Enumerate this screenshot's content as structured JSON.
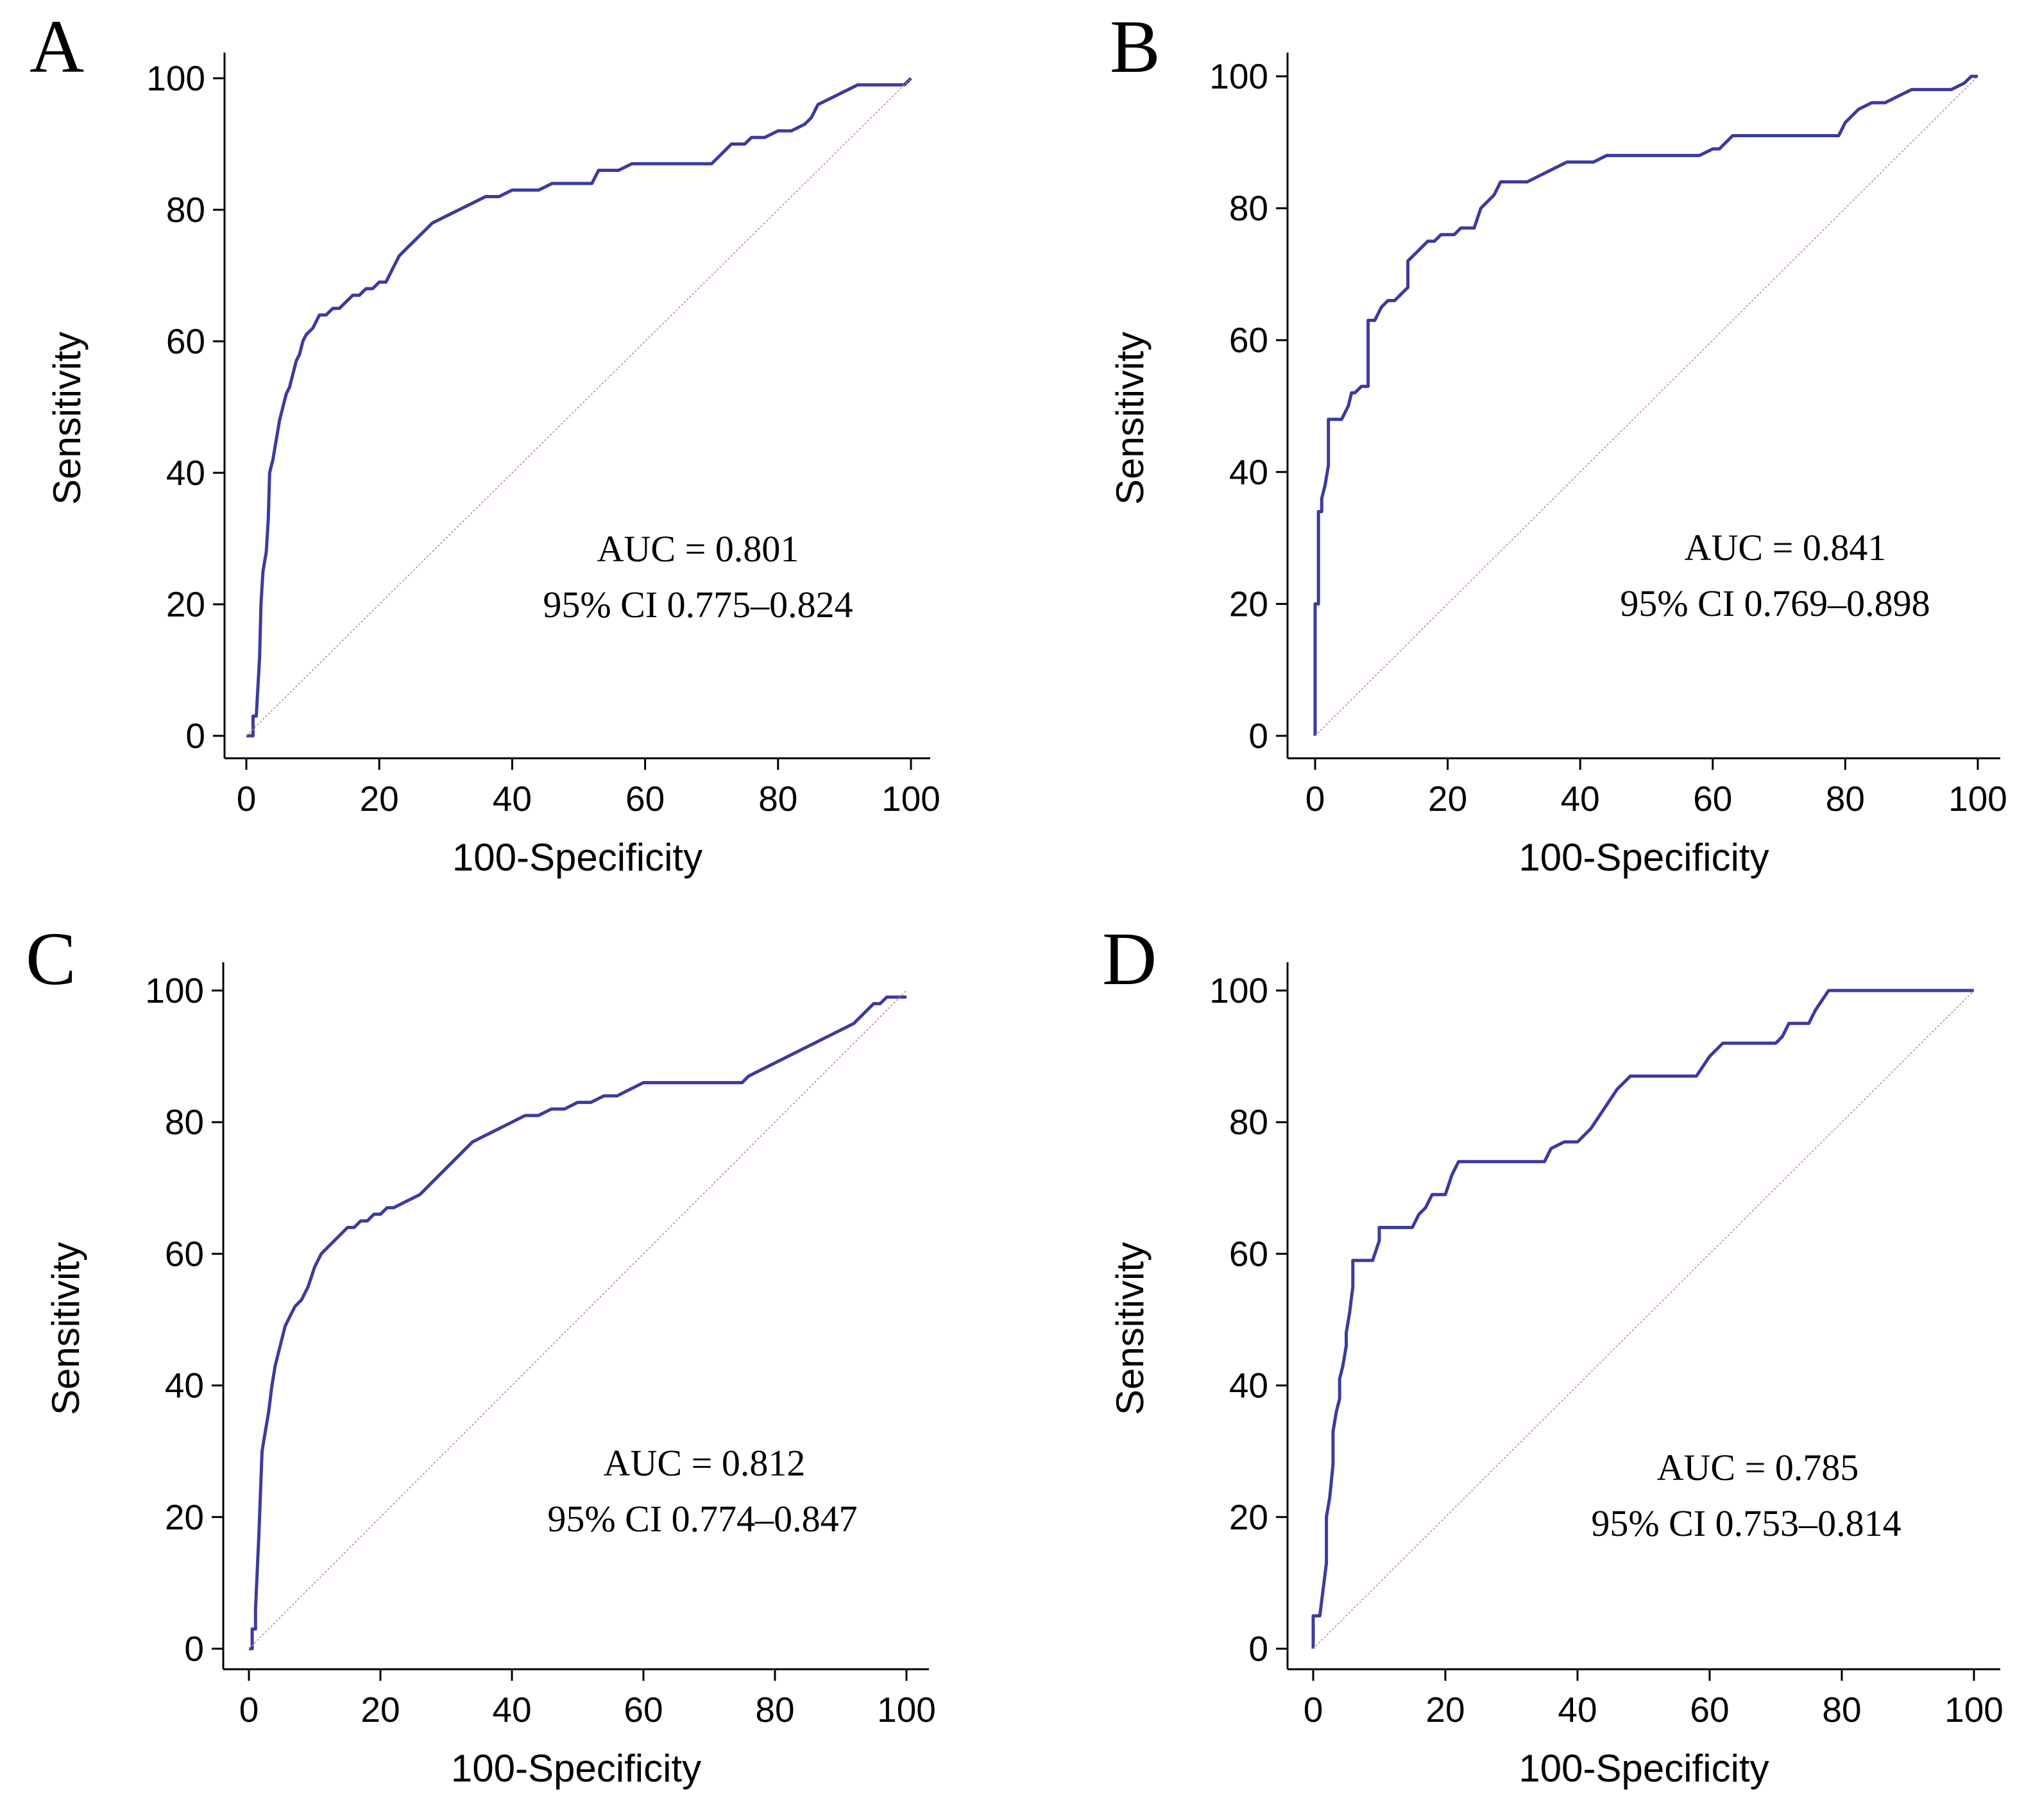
{
  "chart_data": [
    {
      "panel": "A",
      "type": "line",
      "xlabel": "100-Specificity",
      "ylabel": "Sensitivity",
      "xlim": [
        0,
        100
      ],
      "ylim": [
        0,
        100
      ],
      "xticks": [
        "0",
        "20",
        "40",
        "60",
        "80",
        "100"
      ],
      "yticks": [
        "0",
        "20",
        "40",
        "60",
        "80",
        "100"
      ],
      "annotation": [
        "AUC = 0.801",
        "95% CI 0.775–0.824"
      ],
      "series": [
        {
          "name": "ROC curve",
          "x": [
            0,
            1,
            1,
            1.5,
            2,
            2.2,
            2.5,
            3,
            3.3,
            3.5,
            4,
            4.5,
            5,
            5.5,
            6,
            6.5,
            7,
            7.5,
            8,
            8.5,
            9,
            10,
            11,
            12,
            13,
            14,
            15,
            16,
            17,
            18,
            19,
            20,
            21,
            22,
            23,
            24,
            25,
            26,
            28,
            30,
            32,
            34,
            36,
            38,
            40,
            42,
            44,
            46,
            48,
            50,
            52,
            53,
            54,
            56,
            58,
            60,
            62,
            64,
            66,
            68,
            70,
            71,
            72,
            73,
            74,
            75,
            76,
            78,
            80,
            82,
            84,
            85,
            86,
            88,
            90,
            92,
            94,
            96,
            98,
            99,
            100
          ],
          "y": [
            0,
            0,
            3,
            3,
            12,
            20,
            25,
            28,
            33,
            40,
            42,
            45,
            48,
            50,
            52,
            53,
            55,
            57,
            58,
            60,
            61,
            62,
            64,
            64,
            65,
            65,
            66,
            67,
            67,
            68,
            68,
            69,
            69,
            71,
            73,
            74,
            75,
            76,
            78,
            79,
            80,
            81,
            82,
            82,
            83,
            83,
            83,
            84,
            84,
            84,
            84,
            86,
            86,
            86,
            87,
            87,
            87,
            87,
            87,
            87,
            87,
            88,
            89,
            90,
            90,
            90,
            91,
            91,
            92,
            92,
            93,
            94,
            96,
            97,
            98,
            99,
            99,
            99,
            99,
            99,
            100
          ]
        },
        {
          "name": "Reference line",
          "x": [
            0,
            100
          ],
          "y": [
            0,
            100
          ]
        }
      ]
    },
    {
      "panel": "B",
      "type": "line",
      "xlabel": "100-Specificity",
      "ylabel": "Sensitivity",
      "xlim": [
        0,
        100
      ],
      "ylim": [
        0,
        100
      ],
      "xticks": [
        "0",
        "20",
        "40",
        "60",
        "80",
        "100"
      ],
      "yticks": [
        "0",
        "20",
        "40",
        "60",
        "80",
        "100"
      ],
      "annotation": [
        "AUC = 0.841",
        "95% CI 0.769–0.898"
      ],
      "series": [
        {
          "name": "ROC curve",
          "x": [
            0,
            0,
            0.5,
            0.5,
            1,
            1,
            1.5,
            2,
            2,
            3,
            4,
            5,
            5.5,
            6,
            7,
            8,
            8,
            9,
            10,
            11,
            12,
            13,
            14,
            14,
            15,
            16,
            17,
            18,
            19,
            20,
            21,
            22,
            23,
            24,
            25,
            26,
            27,
            28,
            30,
            32,
            34,
            36,
            38,
            40,
            42,
            44,
            46,
            48,
            50,
            52,
            54,
            56,
            58,
            60,
            61,
            62,
            63,
            64,
            66,
            68,
            70,
            72,
            74,
            76,
            78,
            79,
            80,
            82,
            84,
            86,
            88,
            90,
            92,
            94,
            96,
            98,
            99,
            100
          ],
          "y": [
            0,
            20,
            20,
            34,
            34,
            36,
            38,
            41,
            48,
            48,
            48,
            50,
            52,
            52,
            53,
            53,
            63,
            63,
            65,
            66,
            66,
            67,
            68,
            72,
            73,
            74,
            75,
            75,
            76,
            76,
            76,
            77,
            77,
            77,
            80,
            81,
            82,
            84,
            84,
            84,
            85,
            86,
            87,
            87,
            87,
            88,
            88,
            88,
            88,
            88,
            88,
            88,
            88,
            89,
            89,
            90,
            91,
            91,
            91,
            91,
            91,
            91,
            91,
            91,
            91,
            91,
            93,
            95,
            96,
            96,
            97,
            98,
            98,
            98,
            98,
            99,
            100,
            100
          ]
        },
        {
          "name": "Reference line",
          "x": [
            0,
            100
          ],
          "y": [
            0,
            100
          ]
        }
      ]
    },
    {
      "panel": "C",
      "type": "line",
      "xlabel": "100-Specificity",
      "ylabel": "Sensitivity",
      "xlim": [
        0,
        100
      ],
      "ylim": [
        0,
        100
      ],
      "xticks": [
        "0",
        "20",
        "40",
        "60",
        "80",
        "100"
      ],
      "yticks": [
        "0",
        "20",
        "40",
        "60",
        "80",
        "100"
      ],
      "annotation": [
        "AUC = 0.812",
        "95% CI 0.774–0.847"
      ],
      "series": [
        {
          "name": "ROC curve",
          "x": [
            0,
            0.5,
            0.5,
            1,
            1,
            1.5,
            2,
            2.5,
            3,
            3.5,
            4,
            4.5,
            5,
            5.5,
            6,
            6.5,
            7,
            8,
            9,
            10,
            11,
            12,
            13,
            14,
            15,
            16,
            17,
            18,
            19,
            20,
            21,
            22,
            24,
            26,
            28,
            30,
            32,
            34,
            36,
            38,
            40,
            42,
            44,
            46,
            48,
            50,
            52,
            54,
            56,
            58,
            60,
            62,
            64,
            66,
            68,
            70,
            72,
            74,
            75,
            76,
            78,
            80,
            82,
            84,
            86,
            88,
            90,
            92,
            93,
            94,
            95,
            96,
            97,
            98,
            99,
            100
          ],
          "y": [
            0,
            0,
            3,
            3,
            6,
            17,
            30,
            33,
            36,
            40,
            43,
            45,
            47,
            49,
            50,
            51,
            52,
            53,
            55,
            58,
            60,
            61,
            62,
            63,
            64,
            64,
            65,
            65,
            66,
            66,
            67,
            67,
            68,
            69,
            71,
            73,
            75,
            77,
            78,
            79,
            80,
            81,
            81,
            82,
            82,
            83,
            83,
            84,
            84,
            85,
            86,
            86,
            86,
            86,
            86,
            86,
            86,
            86,
            86,
            87,
            88,
            89,
            90,
            91,
            92,
            93,
            94,
            95,
            96,
            97,
            98,
            98,
            99,
            99,
            99,
            99
          ]
        },
        {
          "name": "Reference line",
          "x": [
            0,
            100
          ],
          "y": [
            0,
            100
          ]
        }
      ]
    },
    {
      "panel": "D",
      "type": "line",
      "xlabel": "100-Specificity",
      "ylabel": "Sensitivity",
      "xlim": [
        0,
        100
      ],
      "ylim": [
        0,
        100
      ],
      "xticks": [
        "0",
        "20",
        "40",
        "60",
        "80",
        "100"
      ],
      "yticks": [
        "0",
        "20",
        "40",
        "60",
        "80",
        "100"
      ],
      "annotation": [
        "AUC = 0.785",
        "95% CI 0.753–0.814"
      ],
      "series": [
        {
          "name": "ROC curve",
          "x": [
            0,
            0,
            1,
            1,
            2,
            2,
            2.5,
            3,
            3,
            3.5,
            4,
            4,
            4.5,
            5,
            5,
            5.5,
            6,
            6,
            6.5,
            7,
            8,
            9,
            10,
            10,
            11,
            12,
            13,
            14,
            15,
            16,
            17,
            18,
            19,
            20,
            21,
            22,
            24,
            26,
            28,
            30,
            32,
            34,
            35,
            36,
            38,
            40,
            42,
            44,
            46,
            48,
            50,
            52,
            54,
            56,
            58,
            60,
            62,
            64,
            66,
            68,
            70,
            71,
            72,
            74,
            75,
            76,
            78,
            80,
            82,
            84,
            86,
            88,
            90,
            92,
            94,
            96,
            98,
            100
          ],
          "y": [
            0,
            5,
            5,
            5,
            13,
            20,
            23,
            28,
            33,
            36,
            38,
            41,
            43,
            46,
            48,
            51,
            55,
            59,
            59,
            59,
            59,
            59,
            62,
            64,
            64,
            64,
            64,
            64,
            64,
            66,
            67,
            69,
            69,
            69,
            72,
            74,
            74,
            74,
            74,
            74,
            74,
            74,
            74,
            76,
            77,
            77,
            79,
            82,
            85,
            87,
            87,
            87,
            87,
            87,
            87,
            90,
            92,
            92,
            92,
            92,
            92,
            93,
            95,
            95,
            95,
            97,
            100,
            100,
            100,
            100,
            100,
            100,
            100,
            100,
            100,
            100,
            100,
            100
          ]
        },
        {
          "name": "Reference line",
          "x": [
            0,
            100
          ],
          "y": [
            0,
            100
          ]
        }
      ]
    }
  ]
}
